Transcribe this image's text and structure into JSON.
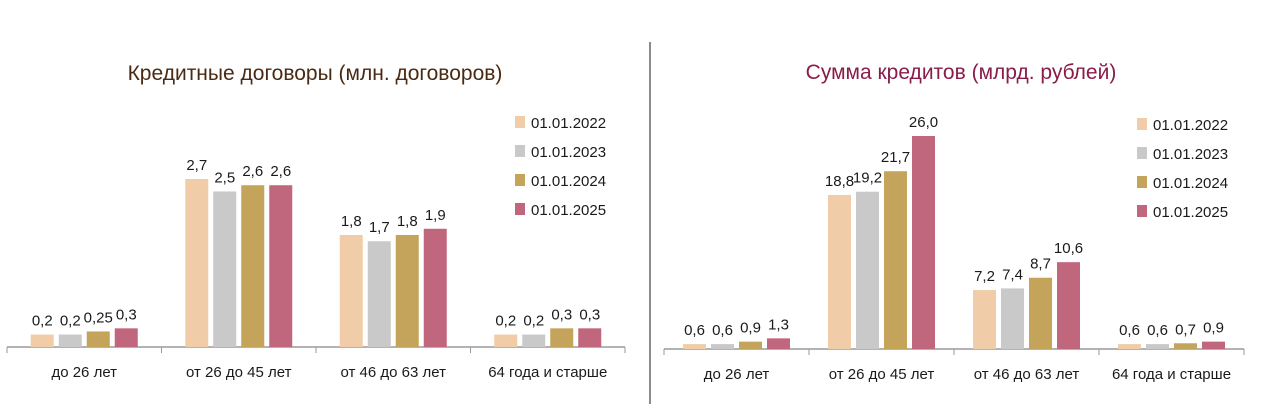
{
  "colors": {
    "series": [
      "#f0cda8",
      "#c9c9c9",
      "#c4a45a",
      "#c0667d"
    ],
    "title_left": "#4a2a14",
    "title_right": "#8a1c4a",
    "axis": "#9a9a9a",
    "text": "#1a1a1a"
  },
  "chart_data": [
    {
      "type": "bar",
      "title": "Кредитные договоры (млн. договоров)",
      "categories": [
        "до 26 лет",
        "от 26 до 45 лет",
        "от 46 до 63 лет",
        "64 года и старше"
      ],
      "series": [
        {
          "name": "01.01.2022",
          "values": [
            0.2,
            2.7,
            1.8,
            0.2
          ],
          "labels": [
            "0,2",
            "2,7",
            "1,8",
            "0,2"
          ]
        },
        {
          "name": "01.01.2023",
          "values": [
            0.2,
            2.5,
            1.7,
            0.2
          ],
          "labels": [
            "0,2",
            "2,5",
            "1,7",
            "0,2"
          ]
        },
        {
          "name": "01.01.2024",
          "values": [
            0.25,
            2.6,
            1.8,
            0.3
          ],
          "labels": [
            "0,25",
            "2,6",
            "1,8",
            "0,3"
          ]
        },
        {
          "name": "01.01.2025",
          "values": [
            0.3,
            2.6,
            1.9,
            0.3
          ],
          "labels": [
            "0,3",
            "2,6",
            "1,9",
            "0,3"
          ]
        }
      ],
      "legend_position": "right",
      "grid": false
    },
    {
      "type": "bar",
      "title": "Сумма кредитов (млрд. рублей)",
      "categories": [
        "до 26 лет",
        "от 26 до 45 лет",
        "от 46 до 63 лет",
        "64 года и старше"
      ],
      "series": [
        {
          "name": "01.01.2022",
          "values": [
            0.6,
            18.8,
            7.2,
            0.6
          ],
          "labels": [
            "0,6",
            "18,8",
            "7,2",
            "0,6"
          ]
        },
        {
          "name": "01.01.2023",
          "values": [
            0.6,
            19.2,
            7.4,
            0.6
          ],
          "labels": [
            "0,6",
            "19,2",
            "7,4",
            "0,6"
          ]
        },
        {
          "name": "01.01.2024",
          "values": [
            0.9,
            21.7,
            8.7,
            0.7
          ],
          "labels": [
            "0,9",
            "21,7",
            "8,7",
            "0,7"
          ]
        },
        {
          "name": "01.01.2025",
          "values": [
            1.3,
            26.0,
            10.6,
            0.9
          ],
          "labels": [
            "1,3",
            "26,0",
            "10,6",
            "0,9"
          ]
        }
      ],
      "legend_position": "right",
      "grid": false
    }
  ]
}
